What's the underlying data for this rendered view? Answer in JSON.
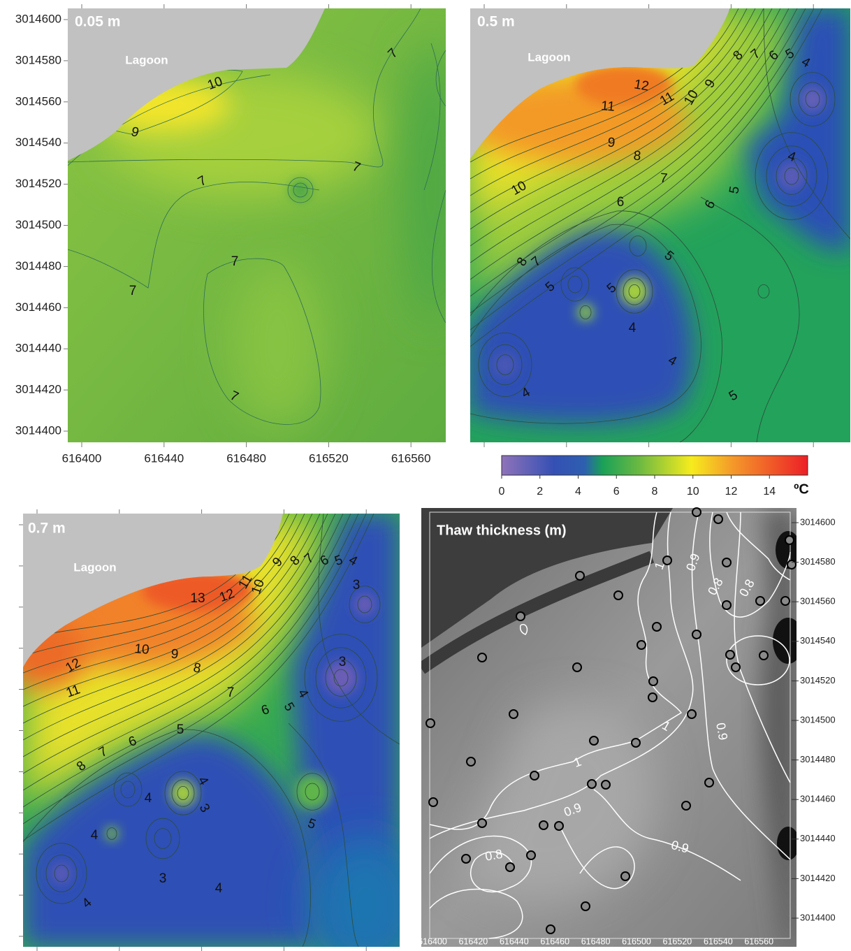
{
  "map_panels": [
    {
      "label": "0.05 m",
      "lagoon": "Lagoon",
      "contour_labels": [
        10,
        9,
        7,
        7,
        7,
        7,
        7,
        7
      ]
    },
    {
      "label": "0.5 m",
      "lagoon": "Lagoon",
      "contour_labels": [
        12,
        11,
        11,
        10,
        9,
        8,
        7,
        6,
        5,
        4,
        9,
        8,
        7,
        10,
        6,
        6,
        5,
        4,
        8,
        7,
        5,
        5,
        5,
        4,
        4,
        4,
        5
      ]
    },
    {
      "label": "0.7 m",
      "lagoon": "Lagoon",
      "contour_labels": [
        13,
        12,
        11,
        10,
        9,
        8,
        7,
        6,
        5,
        4,
        3,
        12,
        11,
        10,
        9,
        8,
        7,
        6,
        5,
        4,
        3,
        8,
        7,
        6,
        5,
        4,
        3,
        4,
        4,
        3,
        4,
        4,
        5
      ]
    }
  ],
  "axes": {
    "x_ticks": [
      616400,
      616440,
      616480,
      616520,
      616560
    ],
    "y_ticks": [
      3014600,
      3014580,
      3014560,
      3014540,
      3014520,
      3014500,
      3014480,
      3014460,
      3014440,
      3014420,
      3014400
    ]
  },
  "colorbar": {
    "range": [
      0,
      16
    ],
    "ticks": [
      0,
      2,
      4,
      6,
      8,
      10,
      12,
      14
    ],
    "unit": "ºC"
  },
  "thaw_panel": {
    "title": "Thaw thickness (m)",
    "x_ticks": [
      616400,
      616420,
      616440,
      616460,
      616480,
      616500,
      616520,
      616540,
      616560
    ],
    "y_ticks": [
      3014600,
      3014580,
      3014560,
      3014540,
      3014520,
      3014500,
      3014480,
      3014460,
      3014440,
      3014420,
      3014400
    ],
    "contour_labels": [
      1,
      0.9,
      0.8,
      0.8,
      1,
      0.9,
      1,
      0.9,
      0.8,
      0.9
    ]
  }
}
